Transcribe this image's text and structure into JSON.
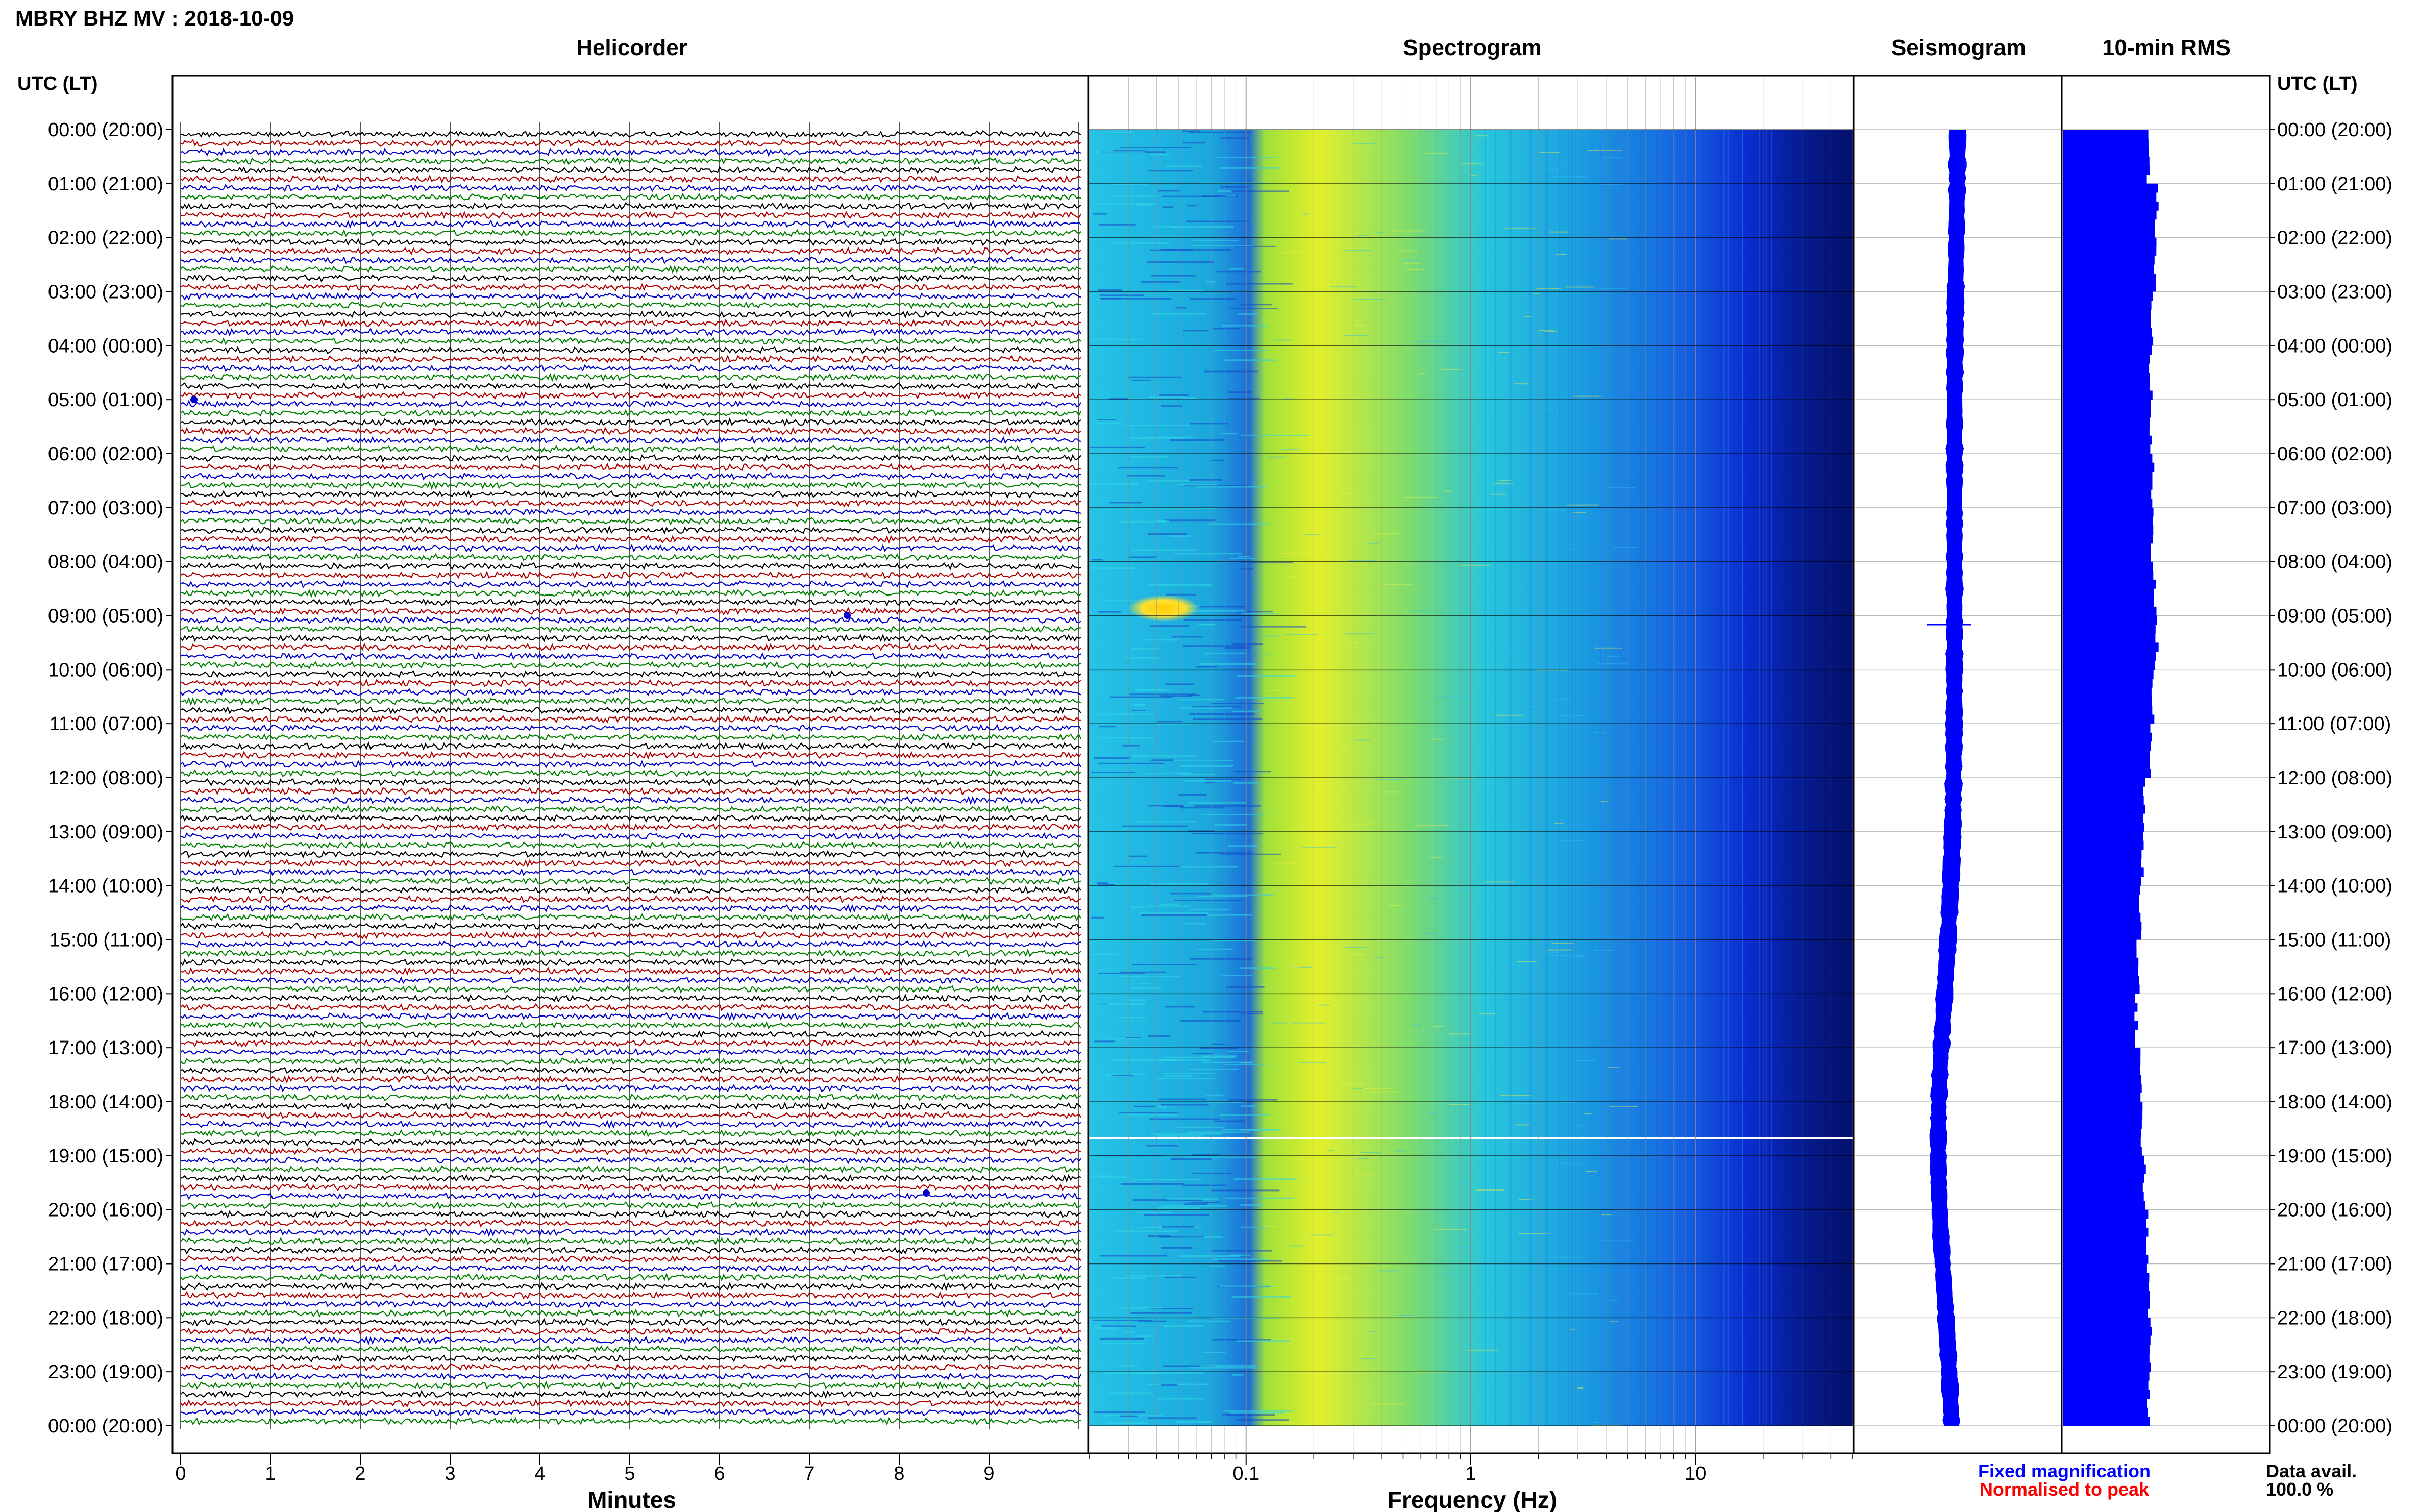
{
  "header": {
    "station_title": "MBRY BHZ MV : 2018-10-09",
    "utc_lt_label": "UTC (LT)"
  },
  "panels": {
    "helicorder": "Helicorder",
    "spectrogram": "Spectrogram",
    "seismogram": "Seismogram",
    "rms": "10-min RMS"
  },
  "axes": {
    "minutes_label": "Minutes",
    "minutes_ticks": [
      "0",
      "1",
      "2",
      "3",
      "4",
      "5",
      "6",
      "7",
      "8",
      "9"
    ],
    "frequency_label": "Frequency (Hz)",
    "frequency_ticks": [
      "0.1",
      "1",
      "10"
    ]
  },
  "time_labels": [
    "00:00 (20:00)",
    "01:00 (21:00)",
    "02:00 (22:00)",
    "03:00 (23:00)",
    "04:00 (00:00)",
    "05:00 (01:00)",
    "06:00 (02:00)",
    "07:00 (03:00)",
    "08:00 (04:00)",
    "09:00 (05:00)",
    "10:00 (06:00)",
    "11:00 (07:00)",
    "12:00 (08:00)",
    "13:00 (09:00)",
    "14:00 (10:00)",
    "15:00 (11:00)",
    "16:00 (12:00)",
    "17:00 (13:00)",
    "18:00 (14:00)",
    "19:00 (15:00)",
    "20:00 (16:00)",
    "21:00 (17:00)",
    "22:00 (18:00)",
    "23:00 (19:00)",
    "00:00 (20:00)"
  ],
  "legend": {
    "fixed": "Fixed magnification",
    "normalised": "Normalised to peak",
    "fixed_color": "#0000ff",
    "normalised_color": "#ff0000"
  },
  "data_availability": {
    "label": "Data avail.",
    "value": "100.0 %"
  },
  "colors": {
    "trace_cycle": [
      "#000000",
      "#b00000",
      "#0000cc",
      "#008000"
    ],
    "seismogram": "#0000ff",
    "rms_bars": "#0000ff"
  },
  "chart_data": {
    "type": "heatmap",
    "helicorder": {
      "lines_per_hour": 6,
      "minutes_per_line": 10,
      "hours": 24
    },
    "spectrogram": {
      "x_scale": "log",
      "xlim_hz": [
        0.02,
        50
      ],
      "notable_features": [
        {
          "time_utc": "09:00",
          "freq_range_hz": [
            0.03,
            0.07
          ],
          "note": "bright low-frequency patch"
        },
        {
          "time_utc": "18:40",
          "note": "white gap line"
        }
      ]
    },
    "rms_10min": {
      "relative_levels_per_hour": [
        0.42,
        0.46,
        0.45,
        0.44,
        0.43,
        0.43,
        0.44,
        0.44,
        0.45,
        0.46,
        0.44,
        0.43,
        0.4,
        0.39,
        0.38,
        0.37,
        0.36,
        0.38,
        0.39,
        0.4,
        0.41,
        0.42,
        0.43,
        0.42
      ]
    }
  }
}
